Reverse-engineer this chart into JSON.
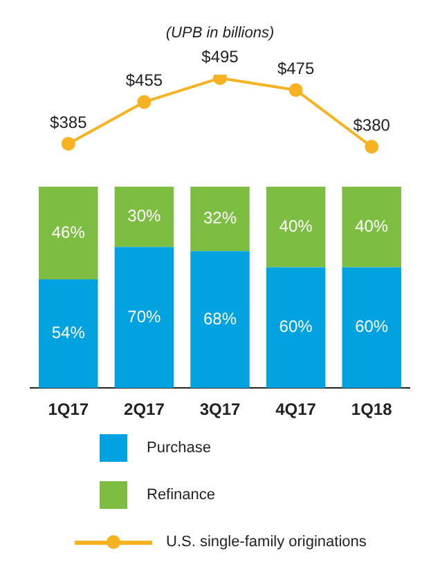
{
  "chart_data": [
    {
      "type": "line",
      "title": "(UPB in billions)",
      "categories": [
        null,
        null,
        null,
        null,
        null
      ],
      "tick_labels": false,
      "marker": "circle",
      "legend": "bottom",
      "series": [
        {
          "name": "U.S. single-family originations",
          "color": "#f6b221",
          "values": [
            385,
            455,
            495,
            475,
            380
          ],
          "value_labels": [
            "$385",
            "$455",
            "$495",
            "$475",
            "$380"
          ]
        }
      ]
    },
    {
      "type": "bar",
      "stacked": true,
      "categories": [
        "1Q17",
        "2Q17",
        "3Q17",
        "4Q17",
        "1Q18"
      ],
      "tick_labels": "x",
      "legend": "bottom",
      "grid": false,
      "series": [
        {
          "name": "Purchase",
          "color": "#00a3df",
          "values": [
            54,
            70,
            68,
            60,
            60
          ],
          "value_labels": [
            "54%",
            "70%",
            "68%",
            "60%",
            "60%"
          ]
        },
        {
          "name": "Refinance",
          "color": "#7cbd42",
          "values": [
            46,
            30,
            32,
            40,
            40
          ],
          "value_labels": [
            "46%",
            "30%",
            "32%",
            "40%",
            "40%"
          ]
        }
      ]
    }
  ]
}
